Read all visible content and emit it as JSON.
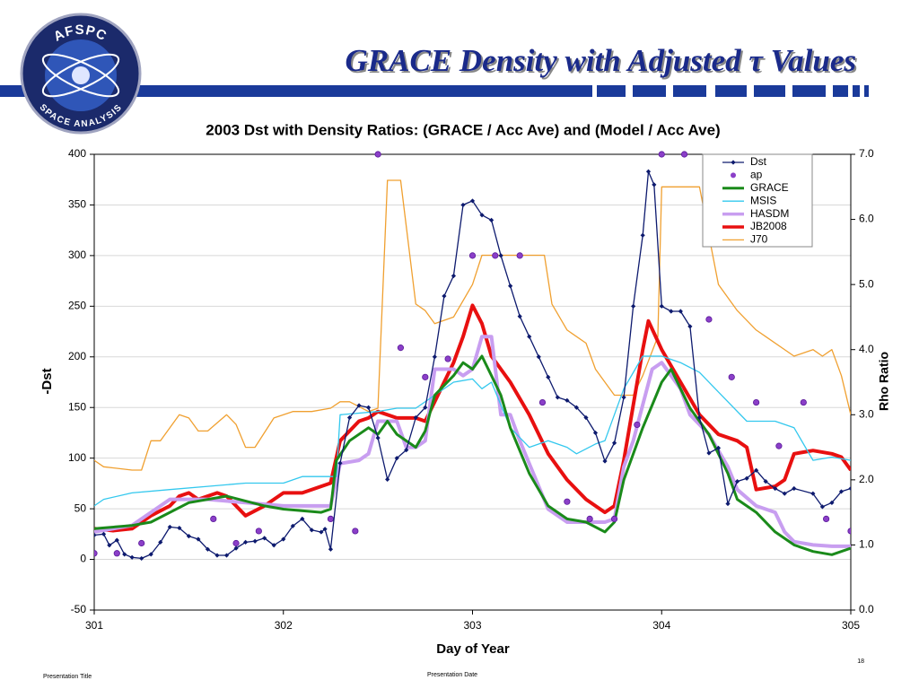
{
  "header": {
    "title": "GRACE Density with Adjusted τ Values",
    "logo_top": "AFSPC",
    "logo_bottom": "SPACE ANALYSIS"
  },
  "footer": {
    "left": "Presentation Title",
    "center": "Presentation Date",
    "page": "18"
  },
  "chart_data": {
    "type": "line",
    "title": "2003 Dst with Density Ratios: (GRACE / Acc Ave) and (Model / Acc Ave)",
    "x_label": "Day of Year",
    "y_label": "-Dst",
    "y2_label": "Rho Ratio",
    "xlim": [
      301,
      305
    ],
    "xticks": [
      301,
      302,
      303,
      304,
      305
    ],
    "ylim": [
      -50,
      400
    ],
    "yticks": [
      -50,
      0,
      50,
      100,
      150,
      200,
      250,
      300,
      350,
      400
    ],
    "y2lim": [
      0,
      7
    ],
    "y2ticks": [
      {
        "value": 0,
        "label": "0.0"
      },
      {
        "value": 1,
        "label": "1.0"
      },
      {
        "value": 2,
        "label": "2.0"
      },
      {
        "value": 3,
        "label": "3.0"
      },
      {
        "value": 4,
        "label": "4.0"
      },
      {
        "value": 5,
        "label": "5.0"
      },
      {
        "value": 6,
        "label": "6.0"
      },
      {
        "value": 7,
        "label": "7.0"
      }
    ],
    "grid": true,
    "legend": "upper right",
    "series": [
      {
        "name": "Dst",
        "color": "#0d1a6e",
        "style": "line-marker",
        "width": 1.3,
        "x": [
          301.0,
          301.05,
          301.08,
          301.12,
          301.16,
          301.2,
          301.25,
          301.3,
          301.35,
          301.4,
          301.45,
          301.5,
          301.55,
          301.6,
          301.65,
          301.7,
          301.75,
          301.8,
          301.85,
          301.9,
          301.95,
          302.0,
          302.05,
          302.1,
          302.15,
          302.2,
          302.22,
          302.25,
          302.3,
          302.35,
          302.4,
          302.45,
          302.5,
          302.55,
          302.6,
          302.65,
          302.7,
          302.75,
          302.8,
          302.85,
          302.9,
          302.95,
          303.0,
          303.05,
          303.1,
          303.15,
          303.2,
          303.25,
          303.3,
          303.35,
          303.4,
          303.45,
          303.5,
          303.55,
          303.6,
          303.65,
          303.7,
          303.75,
          303.8,
          303.85,
          303.9,
          303.93,
          303.96,
          304.0,
          304.05,
          304.1,
          304.15,
          304.2,
          304.25,
          304.3,
          304.35,
          304.4,
          304.45,
          304.5,
          304.55,
          304.6,
          304.65,
          304.7,
          304.8,
          304.85,
          304.9,
          304.95,
          305.0
        ],
        "values": [
          24,
          25,
          14,
          19,
          5,
          2,
          1,
          5,
          17,
          32,
          31,
          23,
          20,
          10,
          4,
          4,
          11,
          17,
          18,
          21,
          14,
          20,
          33,
          40,
          29,
          27,
          30,
          10,
          95,
          140,
          152,
          150,
          120,
          79,
          100,
          108,
          140,
          150,
          200,
          260,
          280,
          350,
          354,
          340,
          335,
          300,
          270,
          240,
          220,
          200,
          180,
          160,
          157,
          150,
          140,
          125,
          97,
          115,
          160,
          250,
          320,
          383,
          370,
          250,
          245,
          245,
          230,
          140,
          105,
          110,
          55,
          77,
          80,
          88,
          77,
          70,
          65,
          70,
          65,
          52,
          56,
          67,
          70
        ]
      },
      {
        "name": "ap",
        "color": "#8b3fc8",
        "style": "marker",
        "x": [
          301.0,
          301.12,
          301.25,
          301.63,
          301.75,
          301.87,
          302.25,
          302.38,
          302.5,
          302.62,
          302.75,
          302.87,
          303.0,
          303.12,
          303.25,
          303.37,
          303.5,
          303.62,
          303.75,
          303.87,
          304.0,
          304.12,
          304.25,
          304.37,
          304.5,
          304.62,
          304.75,
          304.87,
          305.0
        ],
        "values": [
          6,
          6,
          16,
          40,
          16,
          28,
          40,
          28,
          400,
          209,
          180,
          198,
          300,
          300,
          300,
          155,
          57,
          40,
          40,
          133,
          400,
          400,
          237,
          180,
          155,
          112,
          155,
          40,
          28
        ]
      },
      {
        "name": "GRACE",
        "color": "#1a8a1a",
        "style": "line",
        "width": 3,
        "axis": "y2",
        "x": [
          301.0,
          301.2,
          301.3,
          301.5,
          301.7,
          301.9,
          302.0,
          302.2,
          302.25,
          302.28,
          302.35,
          302.45,
          302.5,
          302.55,
          302.6,
          302.7,
          302.75,
          302.8,
          302.9,
          302.95,
          303.0,
          303.05,
          303.1,
          303.15,
          303.2,
          303.3,
          303.4,
          303.5,
          303.6,
          303.7,
          303.75,
          303.8,
          303.9,
          304.0,
          304.05,
          304.1,
          304.15,
          304.25,
          304.3,
          304.35,
          304.4,
          304.5,
          304.6,
          304.7,
          304.8,
          304.9,
          305.0
        ],
        "values": [
          1.25,
          1.3,
          1.35,
          1.65,
          1.75,
          1.6,
          1.55,
          1.5,
          1.55,
          2.3,
          2.6,
          2.8,
          2.7,
          2.9,
          2.7,
          2.5,
          2.75,
          3.3,
          3.6,
          3.8,
          3.7,
          3.9,
          3.6,
          3.3,
          2.8,
          2.1,
          1.6,
          1.4,
          1.35,
          1.2,
          1.35,
          2.0,
          2.8,
          3.5,
          3.7,
          3.4,
          3.1,
          2.7,
          2.4,
          2.1,
          1.7,
          1.5,
          1.2,
          1.0,
          0.9,
          0.85,
          0.95
        ]
      },
      {
        "name": "MSIS",
        "color": "#33c8ee",
        "style": "line",
        "width": 1.3,
        "axis": "y2",
        "x": [
          301.0,
          301.05,
          301.2,
          301.4,
          301.6,
          301.8,
          302.0,
          302.1,
          302.2,
          302.28,
          302.3,
          302.5,
          302.6,
          302.7,
          302.8,
          302.9,
          303.0,
          303.05,
          303.1,
          303.2,
          303.3,
          303.4,
          303.5,
          303.55,
          303.65,
          303.7,
          303.8,
          303.9,
          304.0,
          304.1,
          304.2,
          304.3,
          304.45,
          304.5,
          304.6,
          304.7,
          304.8,
          304.9,
          305.0
        ],
        "values": [
          1.6,
          1.7,
          1.8,
          1.85,
          1.9,
          1.95,
          1.95,
          2.05,
          2.05,
          2.05,
          3.0,
          3.05,
          3.1,
          3.1,
          3.3,
          3.5,
          3.55,
          3.4,
          3.5,
          2.8,
          2.5,
          2.6,
          2.5,
          2.4,
          2.55,
          2.6,
          3.4,
          3.9,
          3.9,
          3.8,
          3.65,
          3.35,
          2.9,
          2.9,
          2.9,
          2.8,
          2.3,
          2.35,
          2.3
        ]
      },
      {
        "name": "HASDM",
        "color": "#c89ef0",
        "style": "line",
        "width": 4,
        "axis": "y2",
        "x": [
          301.0,
          301.2,
          301.4,
          301.6,
          301.8,
          302.0,
          302.2,
          302.25,
          302.3,
          302.4,
          302.45,
          302.5,
          302.6,
          302.65,
          302.7,
          302.75,
          302.8,
          302.9,
          302.95,
          303.0,
          303.05,
          303.1,
          303.15,
          303.2,
          303.25,
          303.3,
          303.4,
          303.5,
          303.6,
          303.7,
          303.75,
          303.8,
          303.85,
          303.95,
          304.0,
          304.1,
          304.15,
          304.25,
          304.35,
          304.4,
          304.5,
          304.6,
          304.65,
          304.7,
          304.8,
          304.9,
          305.0
        ],
        "values": [
          1.2,
          1.3,
          1.7,
          1.7,
          1.65,
          1.6,
          1.6,
          1.6,
          2.25,
          2.3,
          2.4,
          2.9,
          2.9,
          2.5,
          2.5,
          2.6,
          3.7,
          3.7,
          3.6,
          3.7,
          4.2,
          4.2,
          3.0,
          3.0,
          2.6,
          2.25,
          1.55,
          1.35,
          1.35,
          1.35,
          1.4,
          2.2,
          2.6,
          3.7,
          3.8,
          3.4,
          3.0,
          2.7,
          2.2,
          1.85,
          1.6,
          1.5,
          1.2,
          1.05,
          1.0,
          0.98,
          0.98
        ]
      },
      {
        "name": "JB2008",
        "color": "#e81010",
        "style": "line",
        "width": 4,
        "axis": "y2",
        "x": [
          301.0,
          301.1,
          301.2,
          301.3,
          301.4,
          301.45,
          301.5,
          301.55,
          301.65,
          301.7,
          301.8,
          301.9,
          302.0,
          302.1,
          302.2,
          302.25,
          302.3,
          302.4,
          302.45,
          302.5,
          302.6,
          302.7,
          302.75,
          302.8,
          302.9,
          302.95,
          303.0,
          303.05,
          303.1,
          303.2,
          303.3,
          303.4,
          303.5,
          303.6,
          303.7,
          303.75,
          303.8,
          303.9,
          303.93,
          304.0,
          304.1,
          304.2,
          304.3,
          304.4,
          304.45,
          304.5,
          304.6,
          304.65,
          304.7,
          304.8,
          304.9,
          304.95,
          305.0
        ],
        "values": [
          1.25,
          1.22,
          1.25,
          1.45,
          1.6,
          1.75,
          1.8,
          1.7,
          1.8,
          1.75,
          1.45,
          1.6,
          1.8,
          1.8,
          1.9,
          1.95,
          2.6,
          2.9,
          2.95,
          3.05,
          2.95,
          2.95,
          2.9,
          3.2,
          3.8,
          4.2,
          4.68,
          4.4,
          3.9,
          3.5,
          3.0,
          2.4,
          2.0,
          1.7,
          1.5,
          1.6,
          2.3,
          4.0,
          4.44,
          4.0,
          3.5,
          3.0,
          2.7,
          2.6,
          2.5,
          1.85,
          1.9,
          2.0,
          2.4,
          2.45,
          2.4,
          2.35,
          2.15
        ]
      },
      {
        "name": "J70",
        "color": "#f0a030",
        "style": "line",
        "width": 1.3,
        "axis": "y2",
        "x": [
          301.0,
          301.05,
          301.2,
          301.25,
          301.3,
          301.35,
          301.45,
          301.5,
          301.55,
          301.6,
          301.7,
          301.75,
          301.8,
          301.85,
          301.95,
          302.05,
          302.15,
          302.25,
          302.3,
          302.35,
          302.45,
          302.5,
          302.55,
          302.62,
          302.7,
          302.75,
          302.8,
          302.9,
          303.0,
          303.05,
          303.25,
          303.38,
          303.42,
          303.5,
          303.6,
          303.65,
          303.75,
          303.85,
          303.9,
          303.98,
          304.0,
          304.2,
          304.3,
          304.4,
          304.5,
          304.55,
          304.7,
          304.8,
          304.85,
          304.9,
          304.95,
          305.0
        ],
        "values": [
          2.3,
          2.2,
          2.15,
          2.15,
          2.6,
          2.6,
          3.0,
          2.95,
          2.75,
          2.75,
          3.0,
          2.85,
          2.5,
          2.5,
          2.95,
          3.05,
          3.05,
          3.1,
          3.2,
          3.2,
          3.05,
          3.1,
          6.6,
          6.6,
          4.7,
          4.6,
          4.4,
          4.5,
          5.0,
          5.45,
          5.45,
          5.45,
          4.7,
          4.3,
          4.1,
          3.7,
          3.3,
          3.3,
          3.6,
          4.2,
          6.5,
          6.5,
          5.0,
          4.6,
          4.3,
          4.2,
          3.9,
          4.0,
          3.9,
          4.0,
          3.6,
          3.0
        ]
      }
    ]
  }
}
